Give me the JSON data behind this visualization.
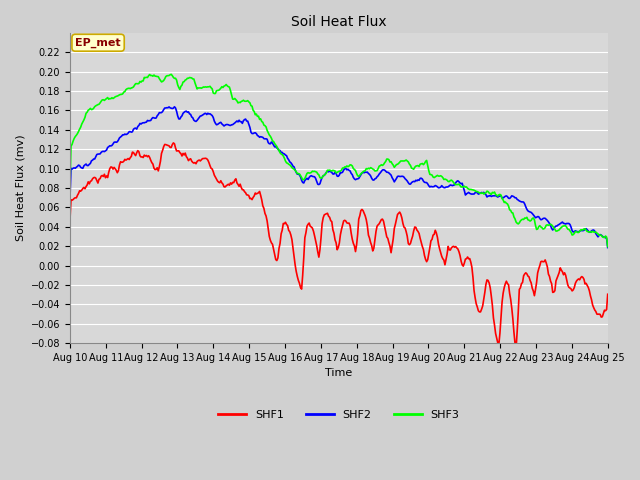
{
  "title": "Soil Heat Flux",
  "xlabel": "Time",
  "ylabel": "Soil Heat Flux (mv)",
  "ylim": [
    -0.08,
    0.24
  ],
  "yticks": [
    -0.08,
    -0.06,
    -0.04,
    -0.02,
    0.0,
    0.02,
    0.04,
    0.06,
    0.08,
    0.1,
    0.12,
    0.14,
    0.16,
    0.18,
    0.2,
    0.22
  ],
  "xtick_labels": [
    "Aug 10",
    "Aug 11",
    "Aug 12",
    "Aug 13",
    "Aug 14",
    "Aug 15",
    "Aug 16",
    "Aug 17",
    "Aug 18",
    "Aug 19",
    "Aug 20",
    "Aug 21",
    "Aug 22",
    "Aug 23",
    "Aug 24",
    "Aug 25"
  ],
  "fig_bg_color": "#d0d0d0",
  "plot_bg": "#d8d8d8",
  "grid_color": "#ffffff",
  "shf1_color": "#ff0000",
  "shf2_color": "#0000ff",
  "shf3_color": "#00ff00",
  "annotation_text": "EP_met",
  "annotation_bg": "#ffffcc",
  "annotation_border": "#ccaa00",
  "title_fontsize": 10,
  "axis_label_fontsize": 8,
  "tick_fontsize": 7,
  "legend_fontsize": 8,
  "linewidth": 1.2
}
